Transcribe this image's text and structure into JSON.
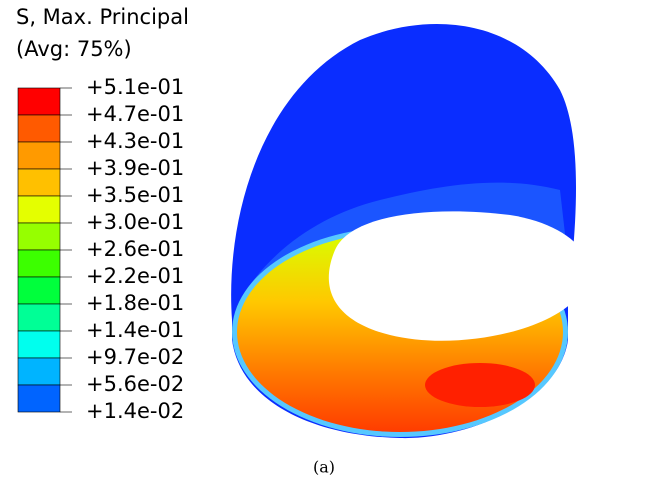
{
  "legend": {
    "title": "S, Max. Principal",
    "subtitle": "(Avg: 75%)",
    "labels": [
      "+5.1e-01",
      "+4.7e-01",
      "+4.3e-01",
      "+3.9e-01",
      "+3.5e-01",
      "+3.0e-01",
      "+2.6e-01",
      "+2.2e-01",
      "+1.8e-01",
      "+1.4e-01",
      "+9.7e-02",
      "+5.6e-02",
      "+1.4e-02"
    ]
  },
  "caption": "(a)"
}
